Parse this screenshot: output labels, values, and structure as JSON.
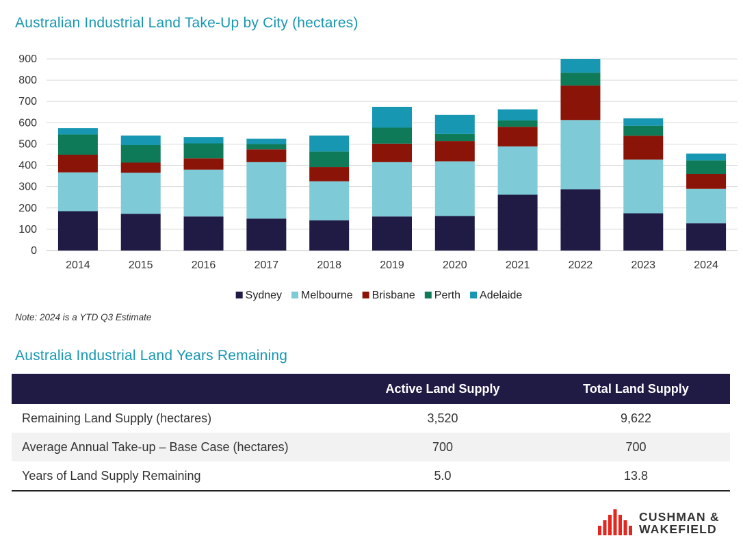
{
  "chart_title": "Australian Industrial Land Take-Up by City (hectares)",
  "note": "Note: 2024 is a YTD Q3 Estimate",
  "table_title": "Australia Industrial Land Years Remaining",
  "chart_data": {
    "type": "bar",
    "stacked": true,
    "categories": [
      "2014",
      "2015",
      "2016",
      "2017",
      "2018",
      "2019",
      "2020",
      "2021",
      "2022",
      "2023",
      "2024"
    ],
    "series": [
      {
        "name": "Sydney",
        "color": "#1f1b45",
        "values": [
          185,
          172,
          160,
          150,
          142,
          160,
          162,
          262,
          288,
          175,
          128
        ]
      },
      {
        "name": "Melbourne",
        "color": "#7fcad7",
        "values": [
          182,
          193,
          220,
          265,
          183,
          255,
          257,
          227,
          325,
          252,
          162
        ]
      },
      {
        "name": "Brisbane",
        "color": "#8b1408",
        "values": [
          83,
          48,
          53,
          60,
          67,
          87,
          95,
          92,
          162,
          112,
          70
        ]
      },
      {
        "name": "Perth",
        "color": "#0e7a57",
        "values": [
          95,
          82,
          70,
          25,
          73,
          75,
          33,
          30,
          60,
          47,
          63
        ]
      },
      {
        "name": "Adelaide",
        "color": "#1797b2",
        "values": [
          30,
          45,
          30,
          25,
          75,
          98,
          90,
          52,
          65,
          35,
          32
        ]
      }
    ],
    "ylim": [
      0,
      900
    ],
    "yticks": [
      0,
      100,
      200,
      300,
      400,
      500,
      600,
      700,
      800,
      900
    ],
    "grid": true,
    "legend_position": "bottom-center"
  },
  "table": {
    "headers": [
      "",
      "Active Land Supply",
      "Total Land Supply"
    ],
    "rows": [
      {
        "label": "Remaining Land Supply (hectares)",
        "active": "3,520",
        "total": "9,622"
      },
      {
        "label": "Average Annual Take-up – Base Case (hectares)",
        "active": "700",
        "total": "700"
      },
      {
        "label": "Years of Land Supply Remaining",
        "active": "5.0",
        "total": "13.8"
      }
    ]
  },
  "logo": {
    "line1": "CUSHMAN &",
    "line2": "WAKEFIELD",
    "color": "#e4261f"
  }
}
